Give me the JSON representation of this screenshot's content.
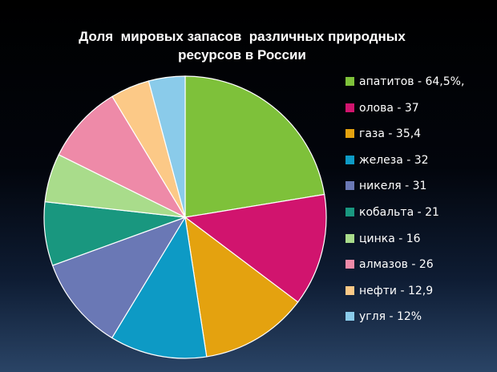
{
  "chart_data": {
    "type": "pie",
    "title": [
      "Доля  мировых запасов  различных природных",
      "ресурсов в России"
    ],
    "legend_position": "right",
    "series": [
      {
        "label": "апатитов - 64,5%,",
        "value": 64.5,
        "color": "#7ec13a"
      },
      {
        "label": "олова - 37",
        "value": 37,
        "color": "#d1146e"
      },
      {
        "label": "газа - 35,4",
        "value": 35.4,
        "color": "#e4a20f"
      },
      {
        "label": "железа - 32",
        "value": 32,
        "color": "#0d9ac5"
      },
      {
        "label": "никеля - 31",
        "value": 31,
        "color": "#6a78b5"
      },
      {
        "label": "кобальта - 21",
        "value": 21,
        "color": "#19977f"
      },
      {
        "label": "цинка - 16",
        "value": 16,
        "color": "#a9dc8b"
      },
      {
        "label": "алмазов - 26",
        "value": 26,
        "color": "#ee8aa8"
      },
      {
        "label": "нефти - 12,9",
        "value": 12.9,
        "color": "#fcc987"
      },
      {
        "label": "угля - 12%",
        "value": 12,
        "color": "#8acbea"
      }
    ]
  }
}
